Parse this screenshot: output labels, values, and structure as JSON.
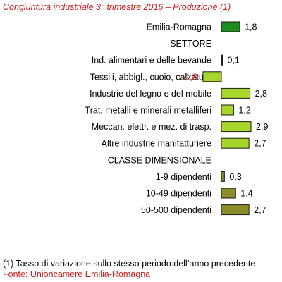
{
  "chart_data": {
    "type": "bar",
    "orientation": "horizontal",
    "title": "Congiuntura industriale 3° trimestre 2016 – Produzione (1)",
    "footnote": "(1) Tasso di variazione sullo stesso periodo dell’anno precedente",
    "source": "Fonte: Unioncamere Emilia-Romagna",
    "xlim": [
      -2.5,
      3.2
    ],
    "grid": false,
    "legend": "none",
    "rows": [
      {
        "label": "Emilia-Romagna",
        "value": 1.8,
        "value_label": "1,8",
        "color": "#1e8c1e"
      },
      {
        "label": "SETTORE",
        "heading": true
      },
      {
        "label": "Ind. alimentari e delle bevande",
        "value": 0.1,
        "value_label": "0,1",
        "color": "#2a2a2a"
      },
      {
        "label": "Tessili, abbigl., cuoio, calzature",
        "value": -1.8,
        "value_label": "-1,8",
        "color": "#a6d62c",
        "label_color": "#c81e1e"
      },
      {
        "label": "Industrie del legno e del mobile",
        "value": 2.8,
        "value_label": "2,8",
        "color": "#a6d62c"
      },
      {
        "label": "Trat. metalli e minerali metalliferi",
        "value": 1.2,
        "value_label": "1,2",
        "color": "#a6d62c"
      },
      {
        "label": "Meccan. elettr. e mez. di trasp.",
        "value": 2.9,
        "value_label": "2,9",
        "color": "#a6d62c"
      },
      {
        "label": "Altre industrie manifatturiere",
        "value": 2.7,
        "value_label": "2,7",
        "color": "#a6d62c"
      },
      {
        "label": "CLASSE DIMENSIONALE",
        "heading": true
      },
      {
        "label": "1-9 dipendenti",
        "value": 0.3,
        "value_label": "0,3",
        "color": "#8c8c28"
      },
      {
        "label": "10-49 dipendenti",
        "value": 1.4,
        "value_label": "1,4",
        "color": "#8c8c28"
      },
      {
        "label": "50-500 dipendenti",
        "value": 2.7,
        "value_label": "2,7",
        "color": "#8c8c28"
      }
    ]
  }
}
